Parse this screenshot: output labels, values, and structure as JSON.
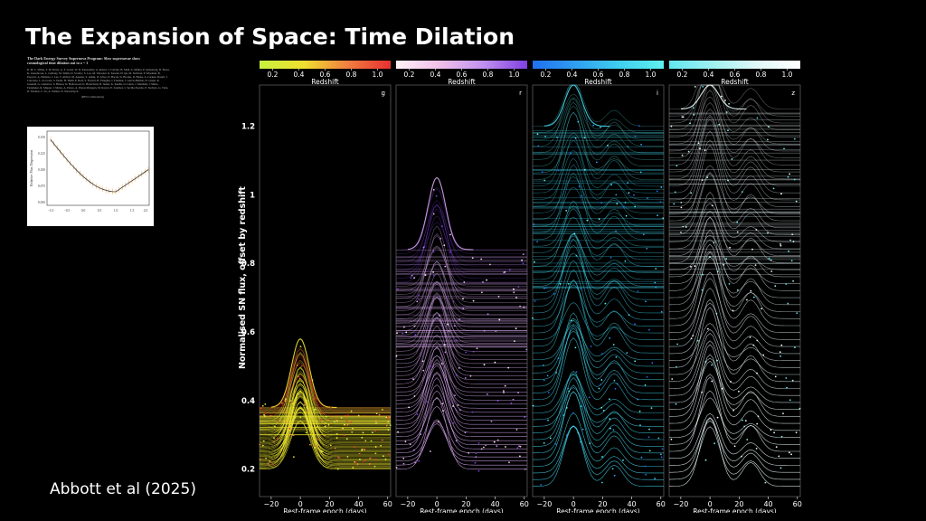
{
  "slide": {
    "title": "The Expansion of Space: Time Dilation",
    "citation": "Abbott et al (2025)"
  },
  "paper": {
    "title": "The Dark Energy Survey Supernova Program: Slow supernovae show cosmological time dilation out to z ~ 1",
    "authors": "R. M. C. White, T. M. Davis, G. F. Lewis, W. D. Kenworthy, A. Abbott, J. Calcino, B. Shah, A. Möller, P. Armstrong, D. Brout, K. Glazebrook, L. Galbany, M. Smith, D. Scolnic, S. Lee, M. Vincenzi, R. Kessler, H. Qu, M. Sullivan, P. Wiseman, B. Popovic, A. Palmese, J. Lee, T. Abbott, M. Aguena, S. Allam, O. Alves, D. Bacon, D. Brooks, D. Burke, A. Carnero Rosell, J. Carretero, L. da Costa, S. Desai, H. Diehl, P. Doel, S. Everett, B. Flaugher, J. Frieman, J. García-Bellido, D. Gruen, R. Gruendl, G. Gutierrez, S. Hinton, D. Hollowood, K. Honscheid, D. James, K. Kuehn, O. Lahav, J. Marshall, J. Mena-Fernández, R. Miquel, J. Myles, A. Pieres, A. Plazas Malagón, M. Raveri, E. Sanchez, I. Sevilla-Noarbe, E. Suchyta, G. Tarle, D. Thomas, C. To, A. Walker, N. Weaverdyck",
    "collaboration": "(DES Collaboration)"
  },
  "inset": {
    "ylabel": "Relative Flux Dispersion",
    "yticks": [
      "0.150",
      "0.125",
      "0.100",
      "0.075",
      "0.050"
    ],
    "xticks": [
      "−1.0",
      "−0.5",
      "0.0",
      "0.5",
      "1.0",
      "1.5",
      "2.0"
    ]
  },
  "colors": {
    "g": "#f2e830",
    "r": "#c9a0f0",
    "i": "#30d8f0",
    "z": "#ffffff",
    "inset_line": "#f0a040"
  },
  "chart_data": {
    "type": "line",
    "ylabel": "Normalised SN flux, offset by redshift",
    "ylim": [
      0.12,
      1.32
    ],
    "y_ticks": [
      "0.2",
      "0.4",
      "0.6",
      "0.8",
      "1",
      "1.2"
    ],
    "y_tick_values": [
      0.2,
      0.4,
      0.6,
      0.8,
      1.0,
      1.2
    ],
    "xlabel": "Rest-frame epoch (days)",
    "xlim": [
      -28,
      62
    ],
    "x_ticks": [
      "−20",
      "0",
      "20",
      "40",
      "60"
    ],
    "x_tick_values": [
      -20,
      0,
      20,
      40,
      60
    ],
    "colorbar": {
      "label": "Redshift",
      "ticks": [
        "0.2",
        "0.4",
        "0.6",
        "0.8",
        "1.0"
      ],
      "tick_values": [
        0.2,
        0.4,
        0.6,
        0.8,
        1.0
      ],
      "range": [
        0.1,
        1.1
      ]
    },
    "panels": [
      {
        "band": "g",
        "colormap": [
          "#c8f040",
          "#f0e030",
          "#f08040",
          "#e83030"
        ],
        "curve_color": "#f0e830",
        "baseline": 0.2,
        "top_offset": 0.38,
        "peak_max": 0.58,
        "dip": false
      },
      {
        "band": "r",
        "colormap": [
          "#fff0f8",
          "#f0c0e8",
          "#c090f0",
          "#8040e0"
        ],
        "curve_color": "#d8a8f0",
        "baseline": 0.2,
        "top_offset": 0.84,
        "peak_max": 1.05,
        "dip": false
      },
      {
        "band": "i",
        "colormap": [
          "#2070f0",
          "#30a0f0",
          "#40d0f0",
          "#60f0f0"
        ],
        "curve_color": "#40d8f0",
        "baseline": 0.15,
        "top_offset": 1.2,
        "peak_max": 1.32,
        "dip": true
      },
      {
        "band": "z",
        "colormap": [
          "#60e8f0",
          "#a0f0f0",
          "#e0f8f8",
          "#ffffff"
        ],
        "curve_color": "#f0ffff",
        "baseline": 0.15,
        "top_offset": 1.25,
        "peak_max": 1.32,
        "dip": true
      }
    ]
  }
}
